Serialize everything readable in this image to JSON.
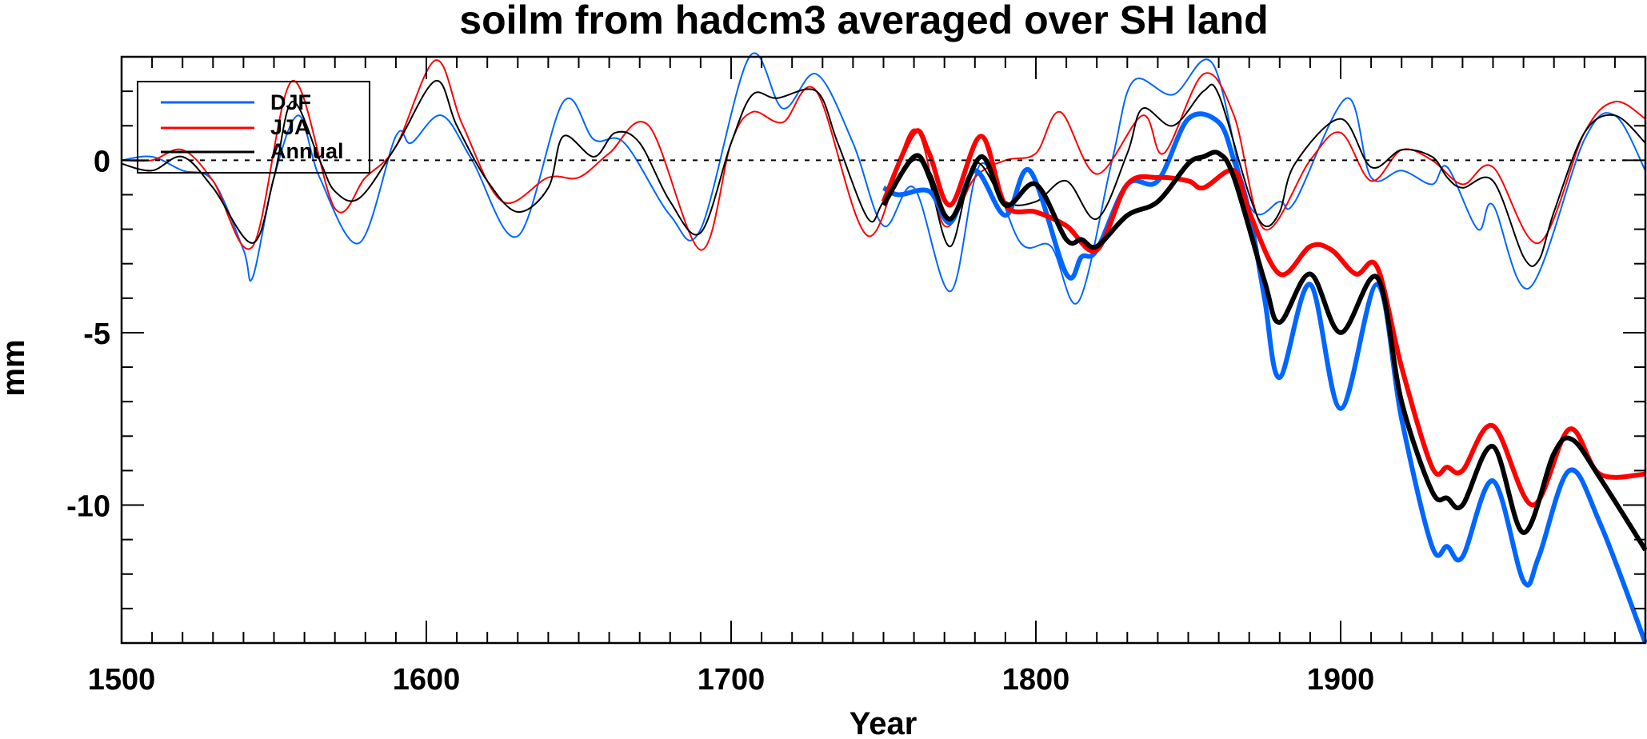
{
  "chart_data": {
    "type": "line",
    "title": "soilm from hadcm3 averaged over SH land",
    "xlabel": "Year",
    "ylabel": "mm",
    "xlim": [
      1500,
      2000
    ],
    "ylim": [
      -14,
      3
    ],
    "xticks": [
      1500,
      1600,
      1700,
      1800,
      1900
    ],
    "xtick_labels": [
      "1500",
      "1600",
      "1700",
      "1800",
      "1900"
    ],
    "yticks": [
      0,
      -5,
      -10
    ],
    "ytick_labels": [
      "0",
      "-5",
      "-10"
    ],
    "zero_line": "dotted",
    "legend": {
      "placement": "top-left",
      "entries": [
        "DJF",
        "JJA",
        "Annual"
      ]
    },
    "colors": {
      "DJF": "#0066ff",
      "JJA": "#ff0000",
      "Annual": "#000000"
    },
    "series": [
      {
        "name": "DJF",
        "style": "thin",
        "x": [
          1500,
          1510,
          1520,
          1530,
          1540,
          1543,
          1550,
          1558,
          1565,
          1578,
          1590,
          1595,
          1605,
          1615,
          1630,
          1645,
          1655,
          1665,
          1680,
          1690,
          1706,
          1717,
          1728,
          1740,
          1750,
          1760,
          1772,
          1782,
          1795,
          1805,
          1814,
          1825,
          1832,
          1845,
          1858,
          1870,
          1880,
          1885,
          1902,
          1910,
          1920,
          1930,
          1935,
          1945,
          1950,
          1962,
          1980,
          1990,
          2000
        ],
        "y": [
          0,
          0.1,
          -0.3,
          -0.6,
          -2.6,
          -3.4,
          -0.5,
          1.3,
          -0.5,
          -2.4,
          0.7,
          0.5,
          1.3,
          0,
          -2.2,
          1.7,
          0.6,
          0.5,
          -1.6,
          -2.0,
          3.0,
          1.5,
          2.5,
          0.5,
          -1.9,
          -0.8,
          -3.8,
          -0.1,
          -2.4,
          -2.5,
          -4.1,
          0,
          2.3,
          1.9,
          2.8,
          -1.3,
          -1.2,
          -1.2,
          1.8,
          -0.5,
          -0.3,
          -0.7,
          -0.2,
          -2.0,
          -1.3,
          -3.7,
          0.6,
          1.3,
          -0.3
        ]
      },
      {
        "name": "JJA",
        "style": "thin",
        "x": [
          1500,
          1510,
          1520,
          1530,
          1543,
          1556,
          1570,
          1580,
          1590,
          1603,
          1612,
          1625,
          1640,
          1650,
          1660,
          1673,
          1690,
          1700,
          1707,
          1717,
          1728,
          1745,
          1760,
          1770,
          1780,
          1790,
          1800,
          1808,
          1820,
          1835,
          1842,
          1855,
          1865,
          1875,
          1890,
          1900,
          1910,
          1920,
          1930,
          1940,
          1950,
          1965,
          1980,
          1990,
          2000
        ],
        "y": [
          0,
          0,
          0.3,
          -0.6,
          -2.5,
          2.3,
          -1.4,
          -0.5,
          0.4,
          2.9,
          1.0,
          -1.2,
          -0.5,
          -0.5,
          0.2,
          1.0,
          -2.6,
          0.5,
          1.4,
          1.1,
          2.0,
          -2.2,
          0.9,
          -1.9,
          -0.5,
          0,
          0.2,
          1.4,
          -0.4,
          1.3,
          0.2,
          2.5,
          1.3,
          -2.0,
          0,
          0.8,
          -0.6,
          0.3,
          0.0,
          -0.7,
          -0.2,
          -2.4,
          0.8,
          1.7,
          1.2
        ]
      },
      {
        "name": "Annual",
        "style": "thin",
        "x": [
          1500,
          1510,
          1520,
          1530,
          1543,
          1550,
          1556,
          1565,
          1570,
          1578,
          1590,
          1603,
          1610,
          1620,
          1630,
          1640,
          1645,
          1655,
          1662,
          1670,
          1680,
          1690,
          1700,
          1707,
          1715,
          1728,
          1735,
          1745,
          1750,
          1760,
          1765,
          1772,
          1780,
          1790,
          1800,
          1810,
          1820,
          1830,
          1835,
          1845,
          1855,
          1860,
          1870,
          1875,
          1880,
          1885,
          1900,
          1910,
          1920,
          1930,
          1935,
          1940,
          1950,
          1960,
          1965,
          1970,
          1980,
          1990,
          2000
        ],
        "y": [
          -0.1,
          -0.3,
          0.1,
          -0.8,
          -2.4,
          -0.5,
          1.7,
          0,
          -0.9,
          -1.1,
          0.4,
          2.3,
          1.0,
          -0.6,
          -1.5,
          -0.8,
          0.7,
          0.1,
          0.8,
          0.5,
          -1.2,
          -2.1,
          0.5,
          1.9,
          1.8,
          2.0,
          0.5,
          -1.7,
          -1.2,
          0,
          -0.6,
          -2.5,
          -0.1,
          -1.2,
          -1.2,
          -0.6,
          -1.7,
          0.2,
          1.5,
          1.0,
          2.0,
          1.9,
          -1.0,
          -1.9,
          -1.5,
          -0.1,
          1.2,
          -0.2,
          0.3,
          0.1,
          -0.5,
          -0.8,
          -0.6,
          -2.8,
          -2.9,
          -1.5,
          0.8,
          1.3,
          0.5
        ]
      },
      {
        "name": "DJF",
        "style": "thick",
        "x": [
          1750,
          1755,
          1765,
          1772,
          1780,
          1790,
          1798,
          1810,
          1815,
          1820,
          1830,
          1840,
          1850,
          1860,
          1865,
          1870,
          1875,
          1880,
          1890,
          1900,
          1912,
          1920,
          1930,
          1935,
          1940,
          1950,
          1960,
          1965,
          1975,
          1985,
          2000
        ],
        "y": [
          -0.8,
          -1.0,
          -0.9,
          -1.8,
          -0.3,
          -1.6,
          -0.3,
          -3.3,
          -2.8,
          -2.6,
          -0.7,
          -0.6,
          1.2,
          1.1,
          0.0,
          -1.5,
          -4.0,
          -6.3,
          -3.6,
          -7.2,
          -3.6,
          -7.5,
          -11.2,
          -11.2,
          -11.5,
          -9.3,
          -12.2,
          -11.5,
          -9.0,
          -10.5,
          -14.0
        ]
      },
      {
        "name": "JJA",
        "style": "thick",
        "x": [
          1750,
          1760,
          1765,
          1772,
          1782,
          1790,
          1800,
          1810,
          1820,
          1830,
          1840,
          1850,
          1855,
          1865,
          1870,
          1880,
          1890,
          1897,
          1905,
          1912,
          1920,
          1930,
          1935,
          1940,
          1950,
          1963,
          1975,
          1985,
          2000
        ],
        "y": [
          -1.2,
          0.8,
          0.2,
          -1.3,
          0.7,
          -1.3,
          -1.5,
          -1.9,
          -2.6,
          -0.7,
          -0.5,
          -0.6,
          -0.8,
          -0.3,
          -1.5,
          -3.3,
          -2.5,
          -2.6,
          -3.3,
          -3.1,
          -6.0,
          -8.9,
          -8.9,
          -9.0,
          -7.7,
          -10.0,
          -7.8,
          -9.1,
          -9.1
        ]
      },
      {
        "name": "Annual",
        "style": "thick",
        "x": [
          1750,
          1760,
          1765,
          1772,
          1782,
          1790,
          1800,
          1810,
          1815,
          1820,
          1830,
          1840,
          1850,
          1855,
          1860,
          1865,
          1875,
          1880,
          1890,
          1900,
          1912,
          1920,
          1930,
          1935,
          1940,
          1950,
          1960,
          1970,
          1976,
          1985,
          2000
        ],
        "y": [
          -1.3,
          0.1,
          -0.4,
          -1.7,
          0.1,
          -1.3,
          -0.7,
          -2.3,
          -2.3,
          -2.5,
          -1.6,
          -1.2,
          -0.1,
          0.1,
          0.2,
          -0.5,
          -3.5,
          -4.7,
          -3.3,
          -5.0,
          -3.4,
          -7.0,
          -9.6,
          -9.8,
          -10.0,
          -8.3,
          -10.8,
          -8.5,
          -8.1,
          -9.2,
          -11.3
        ]
      }
    ]
  }
}
